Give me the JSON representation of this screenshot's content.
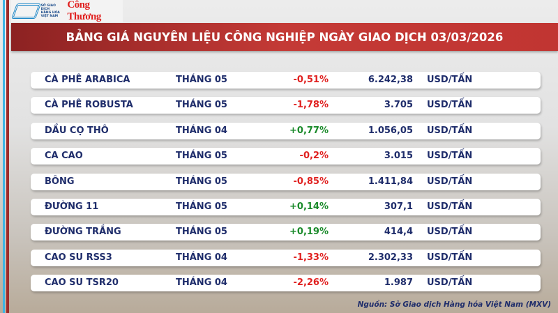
{
  "header": {
    "logo_exchange_text": "SỞ GIAO DỊCH HÀNG HÓA VIỆT NAM",
    "logo_brand": "Công Thương",
    "title": "BẢNG GIÁ NGUYÊN LIỆU CÔNG NGHIỆP NGÀY GIAO DỊCH 03/03/2026"
  },
  "colors": {
    "negative": "#e0201f",
    "positive": "#1a8a2a",
    "text": "#1f2d6b",
    "title_bar": "#c13532"
  },
  "rows": [
    {
      "name": "CÀ PHÊ ARABICA",
      "month": "THÁNG 05",
      "change": "-0,51%",
      "price": "6.242,38",
      "unit": "USD/TẤN"
    },
    {
      "name": "CÀ PHÊ ROBUSTA",
      "month": "THÁNG 05",
      "change": "-1,78%",
      "price": "3.705",
      "unit": "USD/TẤN"
    },
    {
      "name": "DẦU CỌ THÔ",
      "month": "THÁNG 04",
      "change": "+0,77%",
      "price": "1.056,05",
      "unit": "USD/TẤN"
    },
    {
      "name": "CA CAO",
      "month": "THÁNG 05",
      "change": "-0,2%",
      "price": "3.015",
      "unit": "USD/TẤN"
    },
    {
      "name": "BÔNG",
      "month": "THÁNG 05",
      "change": "-0,85%",
      "price": "1.411,84",
      "unit": "USD/TẤN"
    },
    {
      "name": "ĐƯỜNG 11",
      "month": "THÁNG 05",
      "change": "+0,14%",
      "price": "307,1",
      "unit": "USD/TẤN"
    },
    {
      "name": "ĐƯỜNG TRẮNG",
      "month": "THÁNG 05",
      "change": "+0,19%",
      "price": "414,4",
      "unit": "USD/TẤN"
    },
    {
      "name": "CAO SU RSS3",
      "month": "THÁNG 04",
      "change": "-1,33%",
      "price": "2.302,33",
      "unit": "USD/TẤN"
    },
    {
      "name": "CAO SU TSR20",
      "month": "THÁNG 04",
      "change": "-2,26%",
      "price": "1.987",
      "unit": "USD/TẤN"
    }
  ],
  "footer": {
    "source": "Nguồn: Sở Giao dịch Hàng hóa Việt Nam (MXV)"
  }
}
